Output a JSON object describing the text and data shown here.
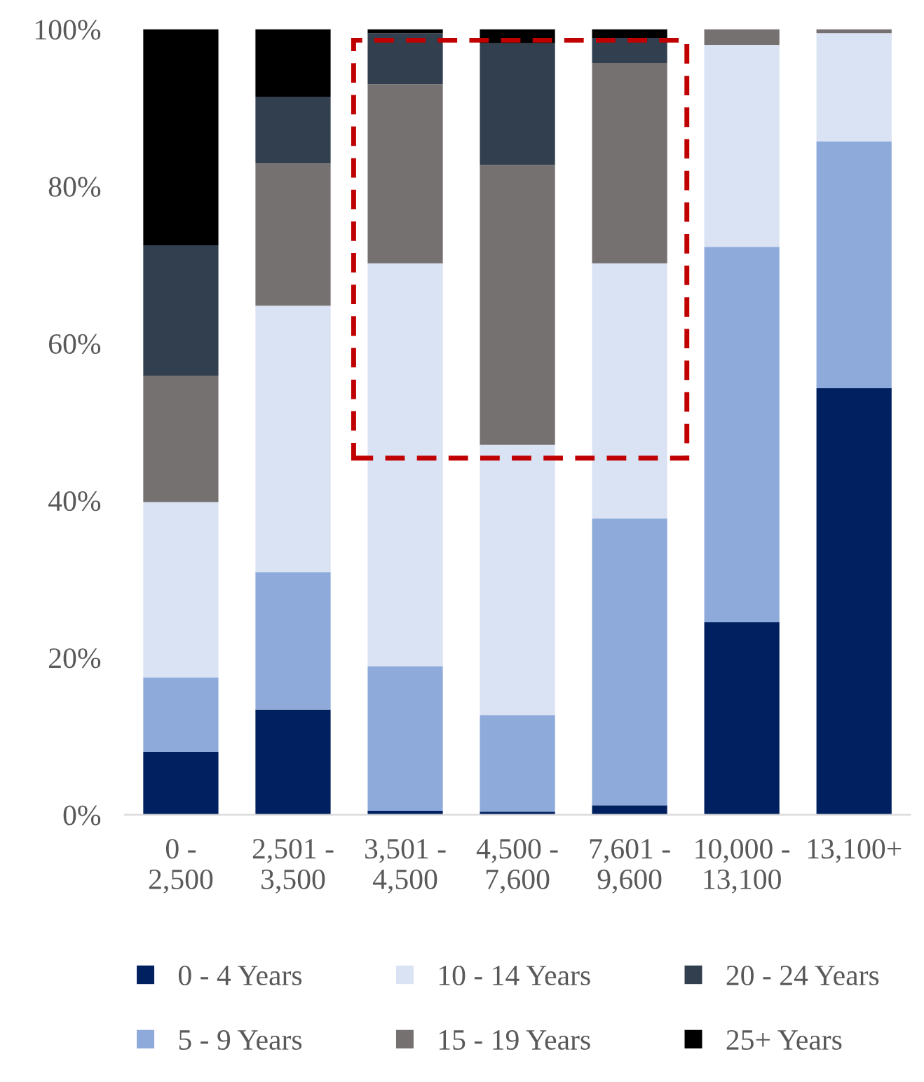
{
  "chart_data": {
    "type": "bar",
    "stacked": true,
    "categories": [
      "0 -\n2,500",
      "2,501 -\n3,500",
      "3,501 -\n4,500",
      "4,500 -\n7,600",
      "7,601 -\n9,600",
      "10,000 -\n13,100",
      "13,100+"
    ],
    "series": [
      {
        "name": "0 - 4 Years",
        "color": "#002060",
        "values": [
          8,
          13.4,
          0.5,
          0.4,
          1.2,
          24.5,
          54.3
        ]
      },
      {
        "name": "5 - 9 Years",
        "color": "#8eaadb",
        "values": [
          9.5,
          17.5,
          18.4,
          12.3,
          36.5,
          47.8,
          31.4
        ]
      },
      {
        "name": "10 - 14 Years",
        "color": "#dae3f3",
        "values": [
          22.3,
          33.9,
          51.3,
          34.4,
          32.5,
          25.7,
          13.8
        ]
      },
      {
        "name": "15 - 19 Years",
        "color": "#767171",
        "values": [
          16.1,
          18.1,
          22.8,
          35.6,
          25.5,
          2.0,
          0.5
        ]
      },
      {
        "name": "20 - 24 Years",
        "color": "#323f4f",
        "values": [
          16.6,
          8.5,
          6.5,
          15.5,
          3.2,
          0,
          0
        ]
      },
      {
        "name": "25+ Years",
        "color": "#000000",
        "values": [
          27.5,
          8.6,
          0.5,
          1.8,
          1.1,
          0,
          0
        ]
      }
    ],
    "ylim": [
      0,
      100
    ],
    "yticks": [
      {
        "value": 0,
        "label": "0%"
      },
      {
        "value": 20,
        "label": "20%"
      },
      {
        "value": 40,
        "label": "40%"
      },
      {
        "value": 60,
        "label": "60%"
      },
      {
        "value": 80,
        "label": "80%"
      },
      {
        "value": 100,
        "label": "100%"
      }
    ],
    "grid": false,
    "legend": "bottom"
  }
}
